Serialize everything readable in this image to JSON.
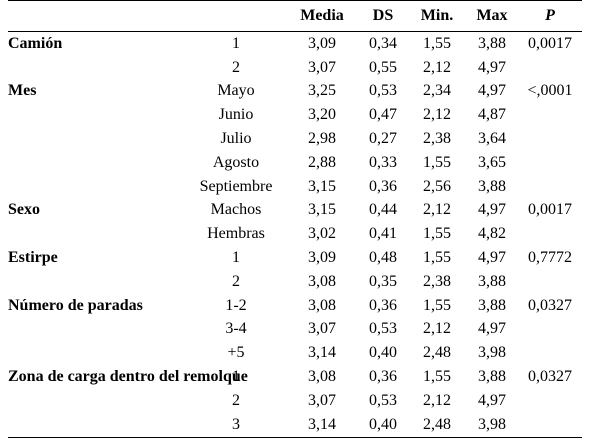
{
  "header": {
    "group": "",
    "level": "",
    "media": "Media",
    "ds": "DS",
    "min": "Min.",
    "max": "Max",
    "p": "P"
  },
  "rows": [
    {
      "group": "Camión",
      "level": "1",
      "media": "3,09",
      "ds": "0,34",
      "min": "1,55",
      "max": "3,88",
      "p": "0,0017"
    },
    {
      "group": "",
      "level": "2",
      "media": "3,07",
      "ds": "0,55",
      "min": "2,12",
      "max": "4,97",
      "p": ""
    },
    {
      "group": "Mes",
      "level": "Mayo",
      "media": "3,25",
      "ds": "0,53",
      "min": "2,34",
      "max": "4,97",
      "p": "<,0001"
    },
    {
      "group": "",
      "level": "Junio",
      "media": "3,20",
      "ds": "0,47",
      "min": "2,12",
      "max": "4,87",
      "p": ""
    },
    {
      "group": "",
      "level": "Julio",
      "media": "2,98",
      "ds": "0,27",
      "min": "2,38",
      "max": "3,64",
      "p": ""
    },
    {
      "group": "",
      "level": "Agosto",
      "media": "2,88",
      "ds": "0,33",
      "min": "1,55",
      "max": "3,65",
      "p": ""
    },
    {
      "group": "",
      "level": "Septiembre",
      "media": "3,15",
      "ds": "0,36",
      "min": "2,56",
      "max": "3,88",
      "p": ""
    },
    {
      "group": "Sexo",
      "level": "Machos",
      "media": "3,15",
      "ds": "0,44",
      "min": "2,12",
      "max": "4,97",
      "p": "0,0017"
    },
    {
      "group": "",
      "level": "Hembras",
      "media": "3,02",
      "ds": "0,41",
      "min": "1,55",
      "max": "4,82",
      "p": ""
    },
    {
      "group": "Estirpe",
      "level": "1",
      "media": "3,09",
      "ds": "0,48",
      "min": "1,55",
      "max": "4,97",
      "p": "0,7772"
    },
    {
      "group": "",
      "level": "2",
      "media": "3,08",
      "ds": "0,35",
      "min": "2,38",
      "max": "3,88",
      "p": ""
    },
    {
      "group": "Número de paradas",
      "level": "1-2",
      "media": "3,08",
      "ds": "0,36",
      "min": "1,55",
      "max": "3,88",
      "p": "0,0327"
    },
    {
      "group": "",
      "level": "3-4",
      "media": "3,07",
      "ds": "0,53",
      "min": "2,12",
      "max": "4,97",
      "p": ""
    },
    {
      "group": "",
      "level": "+5",
      "media": "3,14",
      "ds": "0,40",
      "min": "2,48",
      "max": "3,98",
      "p": ""
    },
    {
      "group": "Zona de carga dentro del remolque",
      "level": "1",
      "media": "3,08",
      "ds": "0,36",
      "min": "1,55",
      "max": "3,88",
      "p": "0,0327"
    },
    {
      "group": "",
      "level": "2",
      "media": "3,07",
      "ds": "0,53",
      "min": "2,12",
      "max": "4,97",
      "p": ""
    },
    {
      "group": "",
      "level": "3",
      "media": "3,14",
      "ds": "0,40",
      "min": "2,48",
      "max": "3,98",
      "p": ""
    }
  ]
}
